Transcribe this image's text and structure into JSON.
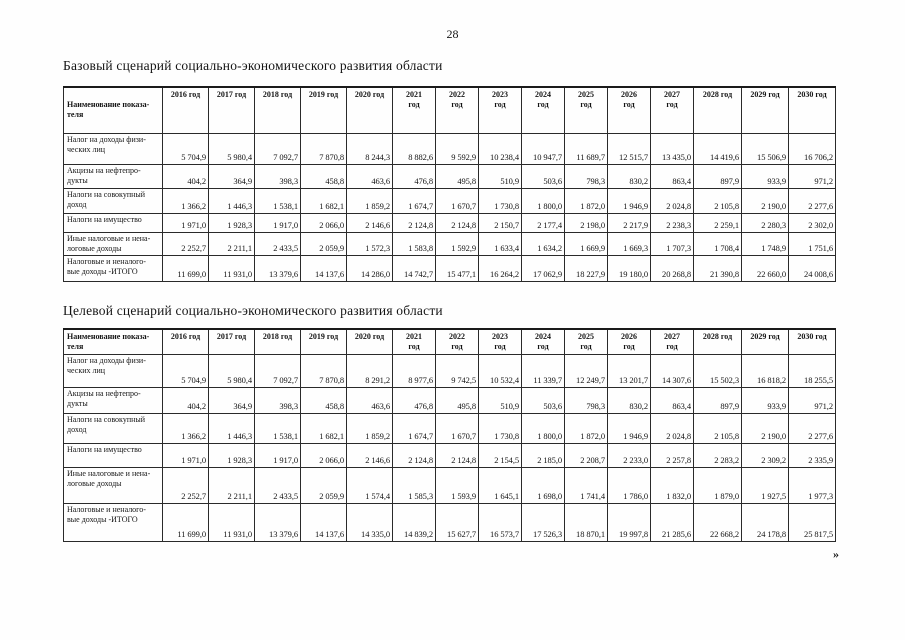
{
  "page": {
    "number": "28",
    "continuation_mark": "»"
  },
  "tables": [
    {
      "title": "Базовый сценарий социально-экономического развития области",
      "name_column_header": "Наименование показа-\nтеля",
      "years": [
        "2016 год",
        "2017 год",
        "2018 год",
        "2019 год",
        "2020 год",
        "2021 год",
        "2022 год",
        "2023 год",
        "2024 год",
        "2025 год",
        "2026 год",
        "2027 год",
        "2028 год",
        "2029 год",
        "2030 год"
      ],
      "rows": [
        {
          "label": "Налог на доходы физи-\nческих лиц",
          "values": [
            "5 704,9",
            "5 980,4",
            "7 092,7",
            "7 870,8",
            "8 244,3",
            "8 882,6",
            "9 592,9",
            "10 238,4",
            "10 947,7",
            "11 689,7",
            "12 515,7",
            "13 435,0",
            "14 419,6",
            "15 506,9",
            "16 706,2"
          ]
        },
        {
          "label": "Акцизы на нефтепро-\nдукты",
          "values": [
            "404,2",
            "364,9",
            "398,3",
            "458,8",
            "463,6",
            "476,8",
            "495,8",
            "510,9",
            "503,6",
            "798,3",
            "830,2",
            "863,4",
            "897,9",
            "933,9",
            "971,2"
          ]
        },
        {
          "label": "Налоги на совокупный\nдоход",
          "values": [
            "1 366,2",
            "1 446,3",
            "1 538,1",
            "1 682,1",
            "1 859,2",
            "1 674,7",
            "1 670,7",
            "1 730,8",
            "1 800,0",
            "1 872,0",
            "1 946,9",
            "2 024,8",
            "2 105,8",
            "2 190,0",
            "2 277,6"
          ]
        },
        {
          "label": "Налоги на имущество",
          "values": [
            "1 971,0",
            "1 928,3",
            "1 917,0",
            "2 066,0",
            "2 146,6",
            "2 124,8",
            "2 124,8",
            "2 150,7",
            "2 177,4",
            "2 198,0",
            "2 217,9",
            "2 238,3",
            "2 259,1",
            "2 280,3",
            "2 302,0"
          ]
        },
        {
          "label": "Иные налоговые и нена-\nлоговые доходы",
          "values": [
            "2 252,7",
            "2 211,1",
            "2 433,5",
            "2 059,9",
            "1 572,3",
            "1 583,8",
            "1 592,9",
            "1 633,4",
            "1 634,2",
            "1 669,9",
            "1 669,3",
            "1 707,3",
            "1 708,4",
            "1 748,9",
            "1 751,6"
          ]
        },
        {
          "label": "Налоговые и неналого-\nвые доходы -ИТОГО",
          "values": [
            "11 699,0",
            "11 931,0",
            "13 379,6",
            "14 137,6",
            "14 286,0",
            "14 742,7",
            "15 477,1",
            "16 264,2",
            "17 062,9",
            "18 227,9",
            "19 180,0",
            "20 268,8",
            "21 390,8",
            "22 660,0",
            "24 008,6"
          ]
        }
      ]
    },
    {
      "title": "Целевой сценарий социально-экономического развития области",
      "name_column_header": "Наименование показа-\nтеля",
      "years": [
        "2016 год",
        "2017 год",
        "2018 год",
        "2019 год",
        "2020 год",
        "2021 год",
        "2022 год",
        "2023 год",
        "2024 год",
        "2025 год",
        "2026 год",
        "2027 год",
        "2028 год",
        "2029 год",
        "2030 год"
      ],
      "rows": [
        {
          "label": "Налог на доходы физи-\nческих лиц",
          "values": [
            "5 704,9",
            "5 980,4",
            "7 092,7",
            "7 870,8",
            "8 291,2",
            "8 977,6",
            "9 742,5",
            "10 532,4",
            "11 339,7",
            "12 249,7",
            "13 201,7",
            "14 307,6",
            "15 502,3",
            "16 818,2",
            "18 255,5"
          ]
        },
        {
          "label": "Акцизы на нефтепро-\nдукты",
          "values": [
            "404,2",
            "364,9",
            "398,3",
            "458,8",
            "463,6",
            "476,8",
            "495,8",
            "510,9",
            "503,6",
            "798,3",
            "830,2",
            "863,4",
            "897,9",
            "933,9",
            "971,2"
          ]
        },
        {
          "label": "Налоги на совокупный\nдоход",
          "values": [
            "1 366,2",
            "1 446,3",
            "1 538,1",
            "1 682,1",
            "1 859,2",
            "1 674,7",
            "1 670,7",
            "1 730,8",
            "1 800,0",
            "1 872,0",
            "1 946,9",
            "2 024,8",
            "2 105,8",
            "2 190,0",
            "2 277,6"
          ]
        },
        {
          "label": "Налоги на имущество",
          "values": [
            "1 971,0",
            "1 928,3",
            "1 917,0",
            "2 066,0",
            "2 146,6",
            "2 124,8",
            "2 124,8",
            "2 154,5",
            "2 185,0",
            "2 208,7",
            "2 233,0",
            "2 257,8",
            "2 283,2",
            "2 309,2",
            "2 335,9"
          ]
        },
        {
          "label": "Иные налоговые и нена-\nлоговые доходы",
          "values": [
            "2 252,7",
            "2 211,1",
            "2 433,5",
            "2 059,9",
            "1 574,4",
            "1 585,3",
            "1 593,9",
            "1 645,1",
            "1 698,0",
            "1 741,4",
            "1 786,0",
            "1 832,0",
            "1 879,0",
            "1 927,5",
            "1 977,3"
          ]
        },
        {
          "label": "Налоговые и неналого-\nвые доходы -ИТОГО",
          "values": [
            "11 699,0",
            "11 931,0",
            "13 379,6",
            "14 137,6",
            "14 335,0",
            "14 839,2",
            "15 627,7",
            "16 573,7",
            "17 526,3",
            "18 870,1",
            "19 997,8",
            "21 285,6",
            "22 668,2",
            "24 178,8",
            "25 817,5"
          ]
        }
      ]
    }
  ]
}
